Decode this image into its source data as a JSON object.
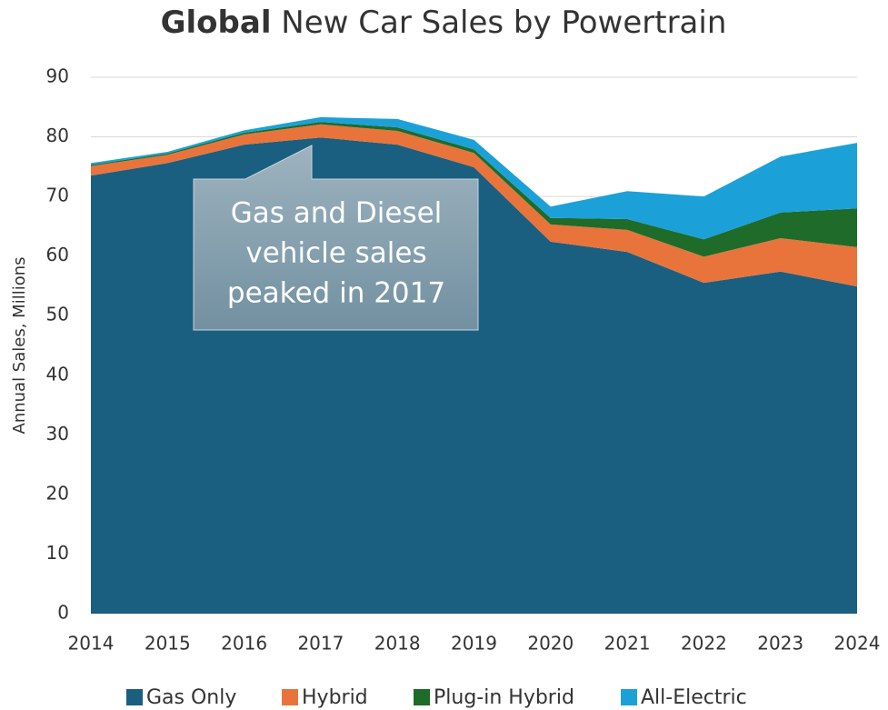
{
  "chart_data": {
    "type": "area",
    "stacked": true,
    "title_bold": "Global",
    "title": "New Car Sales by Powertrain",
    "ylabel": "Annual Sales, Millions",
    "x": [
      2014,
      2015,
      2016,
      2017,
      2018,
      2019,
      2020,
      2021,
      2022,
      2023,
      2024
    ],
    "xlim": [
      2014,
      2024
    ],
    "ylim": [
      0,
      90
    ],
    "yticks": [
      0,
      10,
      20,
      30,
      40,
      50,
      60,
      70,
      80,
      90
    ],
    "grid": true,
    "legend": "bottom",
    "series": [
      {
        "name": "Gas Only",
        "color": "#1a5f80",
        "values": [
          73.5,
          75.6,
          78.7,
          79.9,
          78.7,
          74.9,
          62.4,
          60.7,
          55.5,
          57.4,
          54.9
        ]
      },
      {
        "name": "Hybrid",
        "color": "#e8743b",
        "values": [
          1.6,
          1.4,
          1.7,
          2.2,
          2.3,
          2.4,
          2.9,
          3.7,
          4.4,
          5.6,
          6.6
        ]
      },
      {
        "name": "Plug-in Hybrid",
        "color": "#1e6b2a",
        "values": [
          0.2,
          0.2,
          0.3,
          0.4,
          0.6,
          0.6,
          1.1,
          1.8,
          2.9,
          4.3,
          6.5
        ]
      },
      {
        "name": "All-Electric",
        "color": "#1ba1d8",
        "values": [
          0.3,
          0.3,
          0.4,
          0.8,
          1.4,
          1.6,
          1.9,
          4.7,
          7.2,
          9.4,
          11.0
        ]
      }
    ],
    "annotation": [
      "Gas and Diesel",
      "vehicle sales",
      "peaked in 2017"
    ]
  }
}
